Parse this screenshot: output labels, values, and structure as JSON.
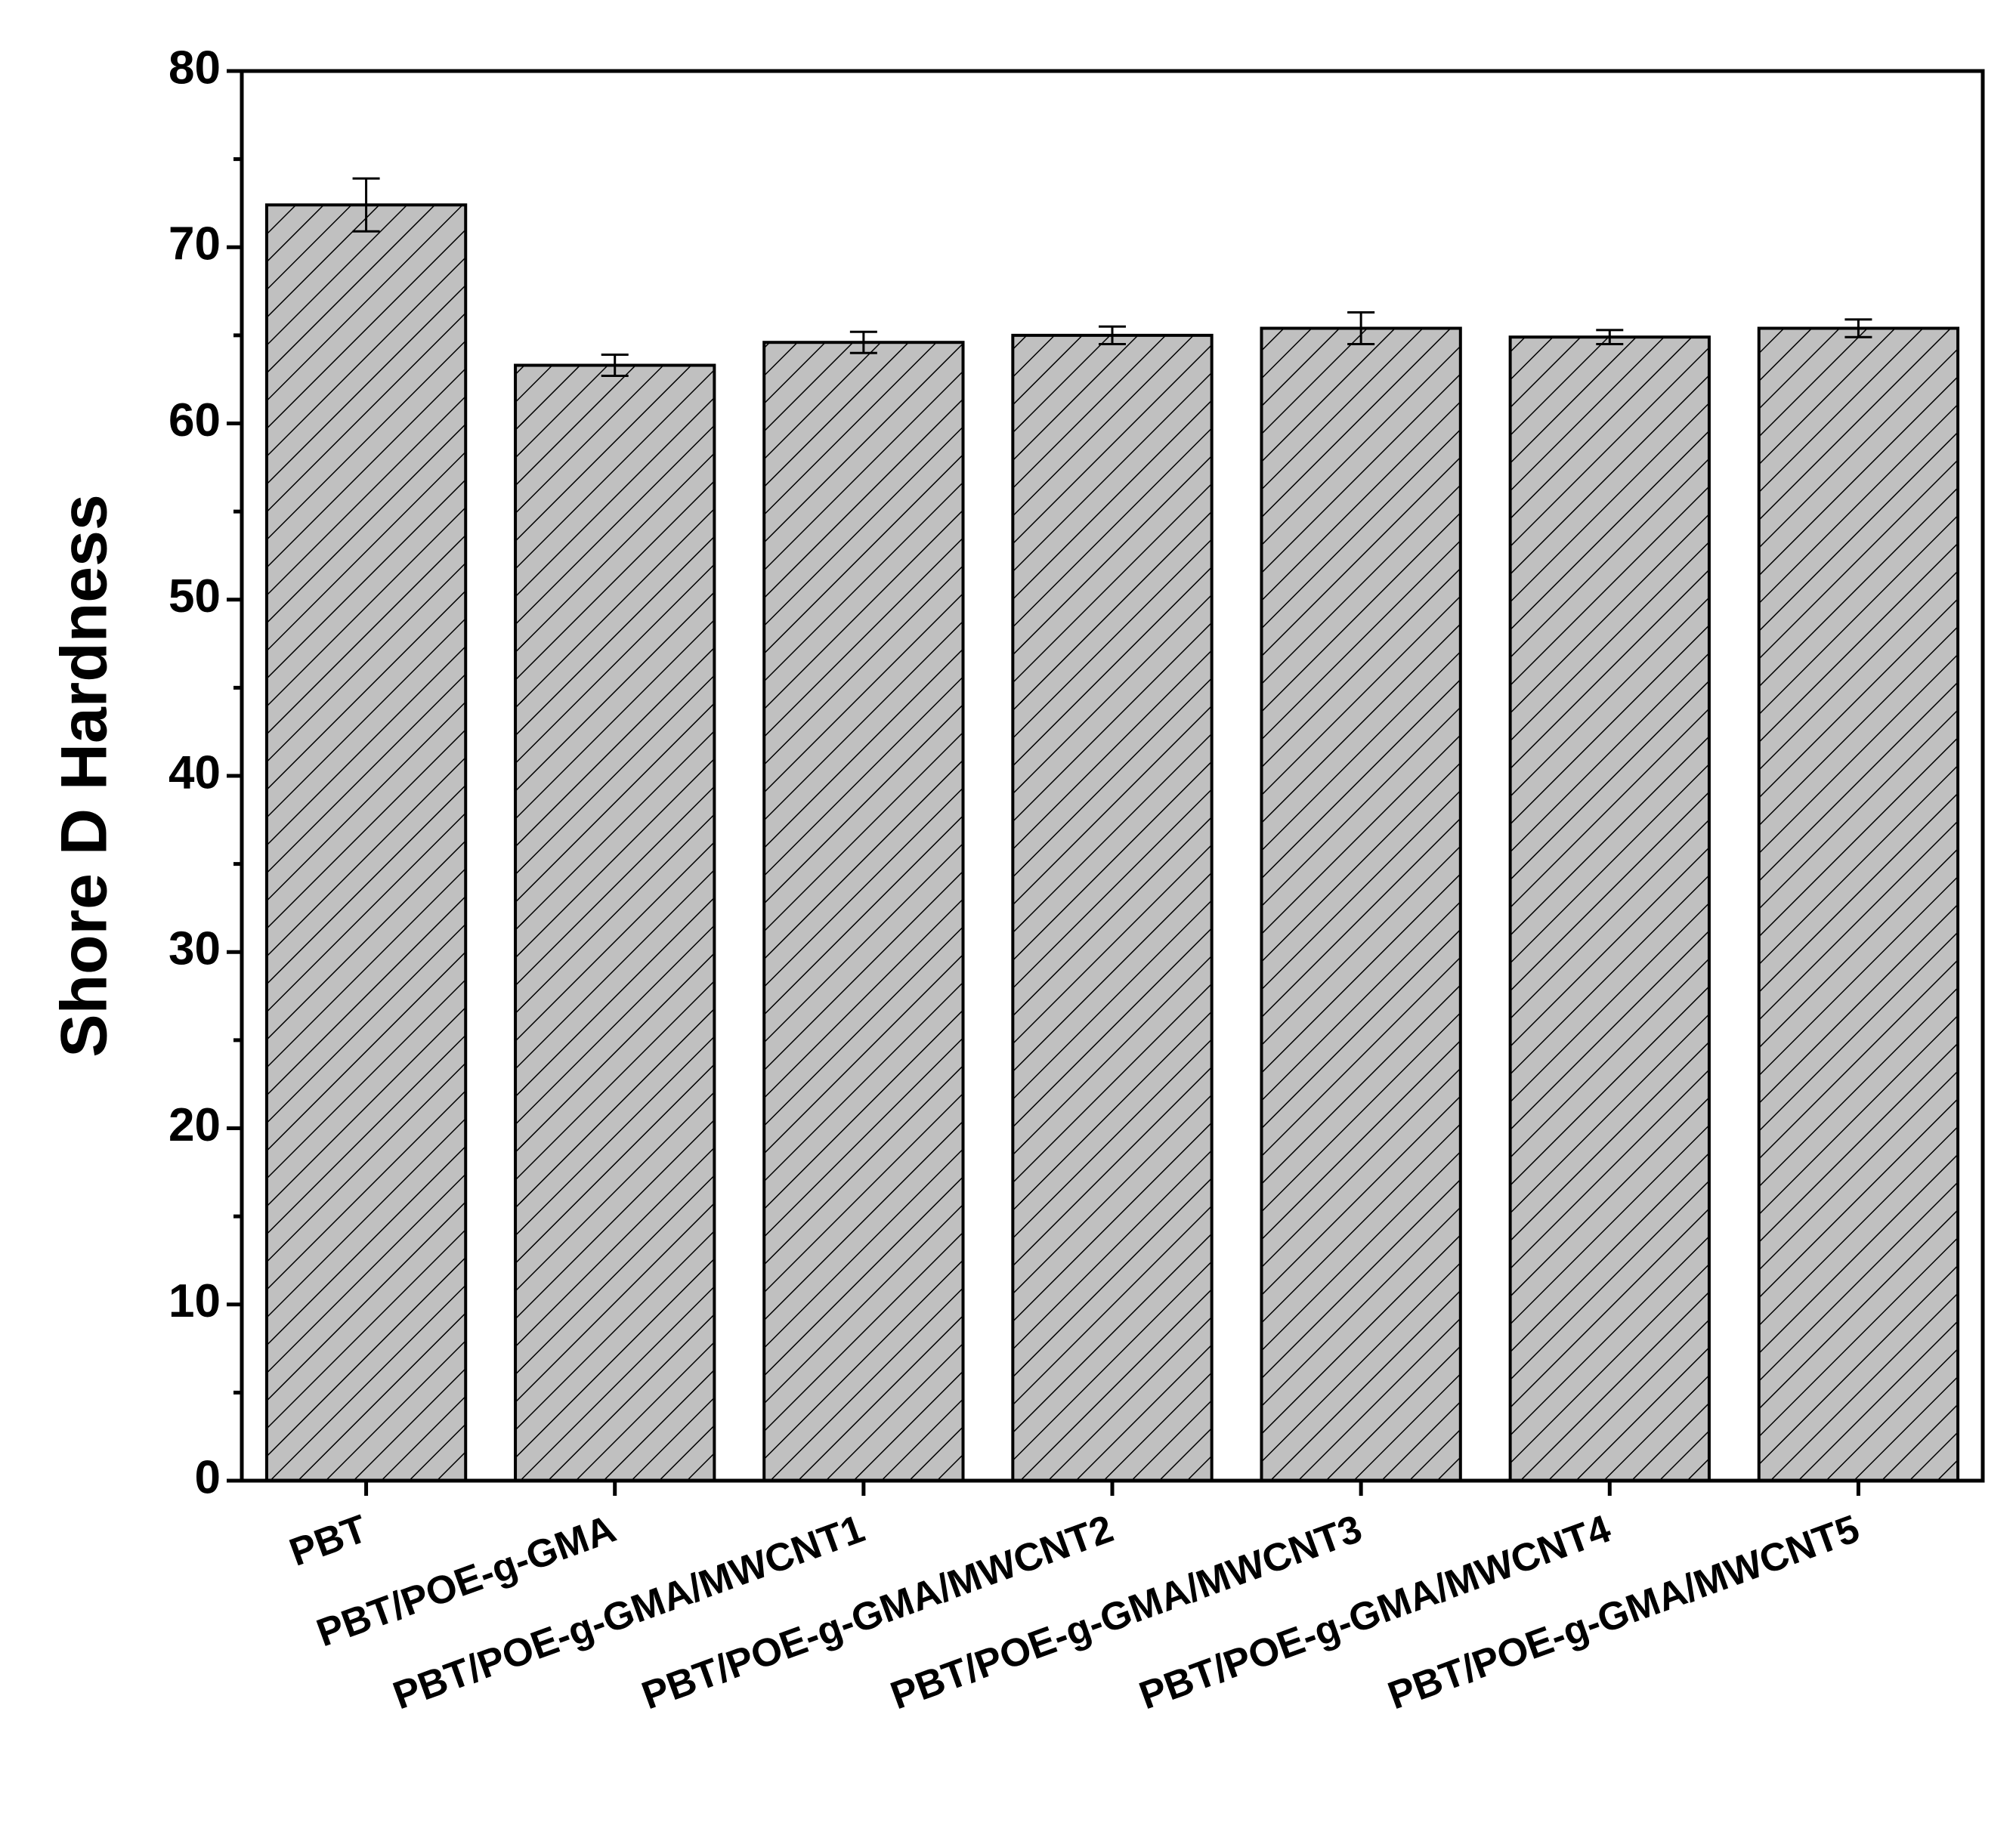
{
  "chart_data": {
    "type": "bar",
    "y_label": "Shore D Hardness",
    "categories": [
      "PBT",
      "PBT/POE-g-GMA",
      "PBT/POE-g-GMA/MWCNT1",
      "PBT/POE-g-GMA/MWCNT2",
      "PBT/POE-g-GMA/MWCNT3",
      "PBT/POE-g-GMA/MWCNT4",
      "PBT/POE-g-GMA/MWCNT5"
    ],
    "values": [
      72.4,
      63.3,
      64.6,
      65.0,
      65.4,
      64.9,
      65.4
    ],
    "errors": [
      1.5,
      0.6,
      0.6,
      0.5,
      0.9,
      0.4,
      0.5
    ],
    "color": "#c0c0c0",
    "ylim": [
      0,
      80
    ],
    "yticks": [
      0,
      10,
      20,
      30,
      40,
      50,
      60,
      70,
      80
    ],
    "grid": false
  }
}
